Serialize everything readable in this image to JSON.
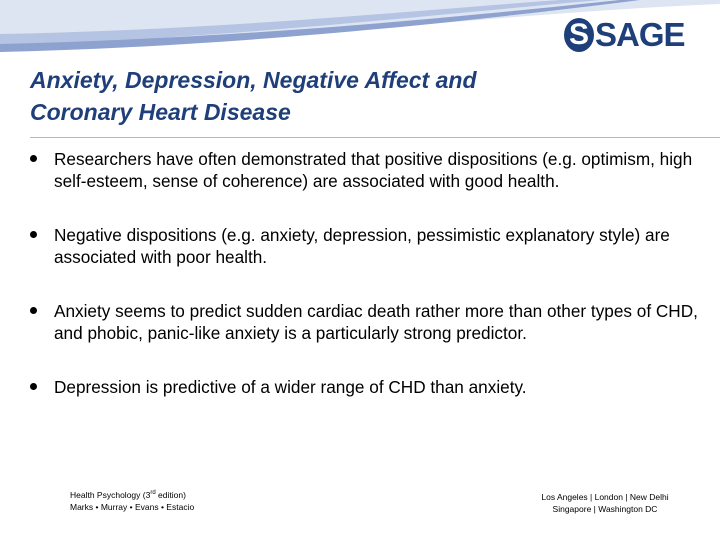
{
  "header": {
    "logo_mark": "S",
    "logo_text": "SAGE"
  },
  "slide": {
    "title_line1": "Anxiety, Depression, Negative Affect and",
    "title_line2": "Coronary Heart Disease",
    "bullets": [
      "Researchers have often demonstrated that positive dispositions (e.g. optimism, high self-esteem, sense of coherence) are associated with good health.",
      "Negative dispositions (e.g. anxiety, depression, pessimistic explanatory style) are associated with poor health.",
      "Anxiety seems to predict sudden cardiac death rather more than other types of CHD, and phobic, panic-like anxiety is a particularly strong predictor.",
      "Depression is predictive of a wider range of CHD than anxiety."
    ]
  },
  "footer": {
    "book_title_before": "Health Psychology (3",
    "book_title_sup": "rd",
    "book_title_after": " edition)",
    "authors": "Marks • Murray • Evans • Estacio",
    "cities_line1": "Los Angeles | London | New Delhi",
    "cities_line2": "Singapore | Washington DC"
  },
  "colors": {
    "title": "#1f3f7a",
    "swoosh_light": "#c9d3ea",
    "swoosh_dark": "#8ea2cf",
    "logo": "#1f3f7a"
  }
}
